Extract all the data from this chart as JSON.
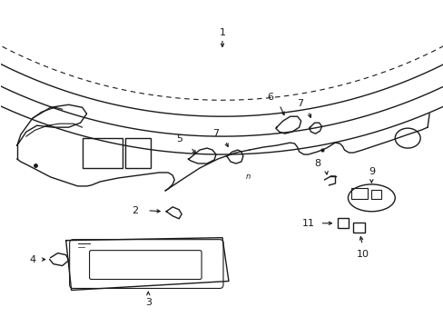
{
  "bg_color": "#ffffff",
  "line_color": "#1a1a1a",
  "figsize": [
    4.89,
    3.6
  ],
  "dpi": 100,
  "font_size": 8,
  "lw": 1.0
}
